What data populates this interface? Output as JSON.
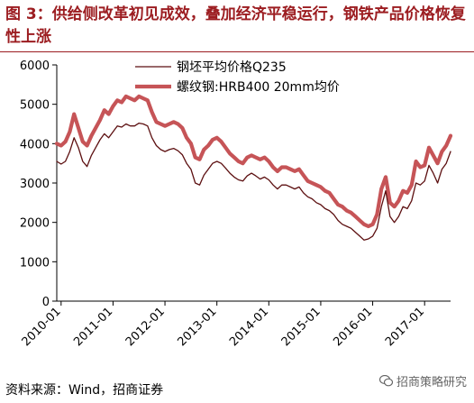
{
  "title": "图 3：供给侧改革初见成效，叠加经济平稳运行，钢铁产品价格恢复性上涨",
  "source": "资料来源：Wind，招商证券",
  "watermark": "招商策略研究",
  "watermark_icon": "wechat-icon",
  "colors": {
    "accent": "#9c1d21",
    "series_billet": "#5c0f10",
    "series_rebar": "#c65457"
  },
  "chart_data": {
    "type": "line",
    "title": "",
    "xlabel": "",
    "ylabel": "",
    "ylim": [
      0,
      6000
    ],
    "yticks": [
      0,
      1000,
      2000,
      3000,
      4000,
      5000,
      6000
    ],
    "xlim": [
      "2009-12",
      "2017-07"
    ],
    "xticks": [
      "2010-01",
      "2011-01",
      "2012-01",
      "2013-01",
      "2014-01",
      "2015-01",
      "2016-01",
      "2017-01"
    ],
    "grid": false,
    "legend": "top-center",
    "series": [
      {
        "name": "钢坯平均价格Q235",
        "points": [
          [
            "2009-12",
            3550
          ],
          [
            "2010-01",
            3480
          ],
          [
            "2010-02",
            3550
          ],
          [
            "2010-03",
            3800
          ],
          [
            "2010-04",
            4150
          ],
          [
            "2010-05",
            3900
          ],
          [
            "2010-06",
            3550
          ],
          [
            "2010-07",
            3420
          ],
          [
            "2010-08",
            3700
          ],
          [
            "2010-09",
            3900
          ],
          [
            "2010-10",
            4100
          ],
          [
            "2010-11",
            4250
          ],
          [
            "2010-12",
            4150
          ],
          [
            "2011-01",
            4300
          ],
          [
            "2011-02",
            4450
          ],
          [
            "2011-03",
            4420
          ],
          [
            "2011-04",
            4500
          ],
          [
            "2011-05",
            4450
          ],
          [
            "2011-06",
            4450
          ],
          [
            "2011-07",
            4520
          ],
          [
            "2011-08",
            4500
          ],
          [
            "2011-09",
            4450
          ],
          [
            "2011-10",
            4150
          ],
          [
            "2011-11",
            3950
          ],
          [
            "2011-12",
            3850
          ],
          [
            "2012-01",
            3800
          ],
          [
            "2012-02",
            3850
          ],
          [
            "2012-03",
            3880
          ],
          [
            "2012-04",
            3820
          ],
          [
            "2012-05",
            3720
          ],
          [
            "2012-06",
            3500
          ],
          [
            "2012-07",
            3350
          ],
          [
            "2012-08",
            3000
          ],
          [
            "2012-09",
            2950
          ],
          [
            "2012-10",
            3200
          ],
          [
            "2012-11",
            3350
          ],
          [
            "2012-12",
            3500
          ],
          [
            "2013-01",
            3550
          ],
          [
            "2013-02",
            3500
          ],
          [
            "2013-03",
            3380
          ],
          [
            "2013-04",
            3250
          ],
          [
            "2013-05",
            3150
          ],
          [
            "2013-06",
            3080
          ],
          [
            "2013-07",
            3050
          ],
          [
            "2013-08",
            3180
          ],
          [
            "2013-09",
            3250
          ],
          [
            "2013-10",
            3180
          ],
          [
            "2013-11",
            3100
          ],
          [
            "2013-12",
            3150
          ],
          [
            "2014-01",
            3080
          ],
          [
            "2014-02",
            2950
          ],
          [
            "2014-03",
            2850
          ],
          [
            "2014-04",
            2950
          ],
          [
            "2014-05",
            2950
          ],
          [
            "2014-06",
            2900
          ],
          [
            "2014-07",
            2850
          ],
          [
            "2014-08",
            2900
          ],
          [
            "2014-09",
            2750
          ],
          [
            "2014-10",
            2650
          ],
          [
            "2014-11",
            2600
          ],
          [
            "2014-12",
            2500
          ],
          [
            "2015-01",
            2450
          ],
          [
            "2015-02",
            2350
          ],
          [
            "2015-03",
            2300
          ],
          [
            "2015-04",
            2200
          ],
          [
            "2015-05",
            2050
          ],
          [
            "2015-06",
            1950
          ],
          [
            "2015-07",
            1900
          ],
          [
            "2015-08",
            1850
          ],
          [
            "2015-09",
            1750
          ],
          [
            "2015-10",
            1650
          ],
          [
            "2015-11",
            1550
          ],
          [
            "2015-12",
            1580
          ],
          [
            "2016-01",
            1650
          ],
          [
            "2016-02",
            1850
          ],
          [
            "2016-03",
            2400
          ],
          [
            "2016-04",
            2800
          ],
          [
            "2016-05",
            2150
          ],
          [
            "2016-06",
            2000
          ],
          [
            "2016-07",
            2150
          ],
          [
            "2016-08",
            2400
          ],
          [
            "2016-09",
            2350
          ],
          [
            "2016-10",
            2550
          ],
          [
            "2016-11",
            3000
          ],
          [
            "2016-12",
            2950
          ],
          [
            "2017-01",
            3050
          ],
          [
            "2017-02",
            3450
          ],
          [
            "2017-03",
            3250
          ],
          [
            "2017-04",
            3000
          ],
          [
            "2017-05",
            3350
          ],
          [
            "2017-06",
            3500
          ],
          [
            "2017-07",
            3800
          ]
        ]
      },
      {
        "name": "螺纹钢:HRB400 20mm均价",
        "points": [
          [
            "2009-12",
            4000
          ],
          [
            "2010-01",
            3950
          ],
          [
            "2010-02",
            4050
          ],
          [
            "2010-03",
            4300
          ],
          [
            "2010-04",
            4750
          ],
          [
            "2010-05",
            4400
          ],
          [
            "2010-06",
            4050
          ],
          [
            "2010-07",
            3950
          ],
          [
            "2010-08",
            4200
          ],
          [
            "2010-09",
            4400
          ],
          [
            "2010-10",
            4600
          ],
          [
            "2010-11",
            4850
          ],
          [
            "2010-12",
            4750
          ],
          [
            "2011-01",
            4950
          ],
          [
            "2011-02",
            5100
          ],
          [
            "2011-03",
            5050
          ],
          [
            "2011-04",
            5200
          ],
          [
            "2011-05",
            5150
          ],
          [
            "2011-06",
            5100
          ],
          [
            "2011-07",
            5200
          ],
          [
            "2011-08",
            5150
          ],
          [
            "2011-09",
            5100
          ],
          [
            "2011-10",
            4800
          ],
          [
            "2011-11",
            4550
          ],
          [
            "2011-12",
            4500
          ],
          [
            "2012-01",
            4450
          ],
          [
            "2012-02",
            4500
          ],
          [
            "2012-03",
            4550
          ],
          [
            "2012-04",
            4500
          ],
          [
            "2012-05",
            4400
          ],
          [
            "2012-06",
            4150
          ],
          [
            "2012-07",
            4000
          ],
          [
            "2012-08",
            3650
          ],
          [
            "2012-09",
            3600
          ],
          [
            "2012-10",
            3850
          ],
          [
            "2012-11",
            3950
          ],
          [
            "2012-12",
            4100
          ],
          [
            "2013-01",
            4150
          ],
          [
            "2013-02",
            4050
          ],
          [
            "2013-03",
            3900
          ],
          [
            "2013-04",
            3750
          ],
          [
            "2013-05",
            3650
          ],
          [
            "2013-06",
            3550
          ],
          [
            "2013-07",
            3500
          ],
          [
            "2013-08",
            3650
          ],
          [
            "2013-09",
            3700
          ],
          [
            "2013-10",
            3650
          ],
          [
            "2013-11",
            3600
          ],
          [
            "2013-12",
            3650
          ],
          [
            "2014-01",
            3550
          ],
          [
            "2014-02",
            3400
          ],
          [
            "2014-03",
            3300
          ],
          [
            "2014-04",
            3400
          ],
          [
            "2014-05",
            3400
          ],
          [
            "2014-06",
            3350
          ],
          [
            "2014-07",
            3300
          ],
          [
            "2014-08",
            3350
          ],
          [
            "2014-09",
            3200
          ],
          [
            "2014-10",
            3050
          ],
          [
            "2014-11",
            3000
          ],
          [
            "2014-12",
            2950
          ],
          [
            "2015-01",
            2900
          ],
          [
            "2015-02",
            2800
          ],
          [
            "2015-03",
            2750
          ],
          [
            "2015-04",
            2600
          ],
          [
            "2015-05",
            2450
          ],
          [
            "2015-06",
            2400
          ],
          [
            "2015-07",
            2300
          ],
          [
            "2015-08",
            2250
          ],
          [
            "2015-09",
            2150
          ],
          [
            "2015-10",
            2050
          ],
          [
            "2015-11",
            1950
          ],
          [
            "2015-12",
            1900
          ],
          [
            "2016-01",
            1950
          ],
          [
            "2016-02",
            2200
          ],
          [
            "2016-03",
            2850
          ],
          [
            "2016-04",
            3150
          ],
          [
            "2016-05",
            2500
          ],
          [
            "2016-06",
            2400
          ],
          [
            "2016-07",
            2550
          ],
          [
            "2016-08",
            2800
          ],
          [
            "2016-09",
            2750
          ],
          [
            "2016-10",
            2950
          ],
          [
            "2016-11",
            3550
          ],
          [
            "2016-12",
            3400
          ],
          [
            "2017-01",
            3450
          ],
          [
            "2017-02",
            3900
          ],
          [
            "2017-03",
            3700
          ],
          [
            "2017-04",
            3500
          ],
          [
            "2017-05",
            3800
          ],
          [
            "2017-06",
            3950
          ],
          [
            "2017-07",
            4200
          ]
        ]
      }
    ]
  }
}
